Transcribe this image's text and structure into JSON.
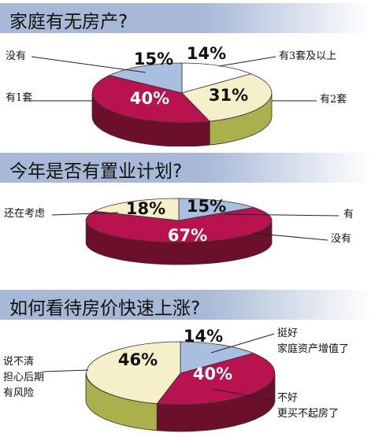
{
  "colors": {
    "white": "#ffffff",
    "cream": "#f5f0c9",
    "blue": "#a9bfe0",
    "magenta": "#b8124f",
    "olive": "#a9b04c",
    "banner": "#a7b9d6"
  },
  "chart_data": [
    {
      "type": "pie",
      "title": "家庭有无房产?",
      "slices": [
        {
          "label": "有3套及以上",
          "value": 14,
          "value_label": "14%",
          "color": "white"
        },
        {
          "label": "有2套",
          "value": 31,
          "value_label": "31%",
          "color": "cream"
        },
        {
          "label": "有1套",
          "value": 40,
          "value_label": "40%",
          "color": "magenta"
        },
        {
          "label": "没有",
          "value": 15,
          "value_label": "15%",
          "color": "blue"
        }
      ]
    },
    {
      "type": "pie",
      "title": "今年是否有置业计划?",
      "slices": [
        {
          "label": "有",
          "value": 15,
          "value_label": "15%",
          "color": "blue"
        },
        {
          "label": "没有",
          "value": 67,
          "value_label": "67%",
          "color": "magenta"
        },
        {
          "label": "还在考虑",
          "value": 18,
          "value_label": "18%",
          "color": "cream"
        }
      ]
    },
    {
      "type": "pie",
      "title": "如何看待房价快速上涨?",
      "slices": [
        {
          "label": "挺好 家庭资产增值了",
          "value": 14,
          "value_label": "14%",
          "color": "blue"
        },
        {
          "label": "不好 更买不起房了",
          "value": 40,
          "value_label": "40%",
          "color": "magenta"
        },
        {
          "label": "说不清 担心后期 有风险",
          "value": 46,
          "value_label": "46%",
          "color": "cream"
        }
      ]
    }
  ],
  "labels": {
    "c0": [
      "有3套及以上",
      "有2套",
      "有1套",
      "没有"
    ],
    "c1": [
      "有",
      "没有",
      "还在考虑"
    ],
    "c2": {
      "a": [
        "挺好",
        "家庭资产增值了"
      ],
      "b": [
        "不好",
        "更买不起房了"
      ],
      "c": [
        "说不清",
        "担心后期",
        "有风险"
      ]
    }
  }
}
